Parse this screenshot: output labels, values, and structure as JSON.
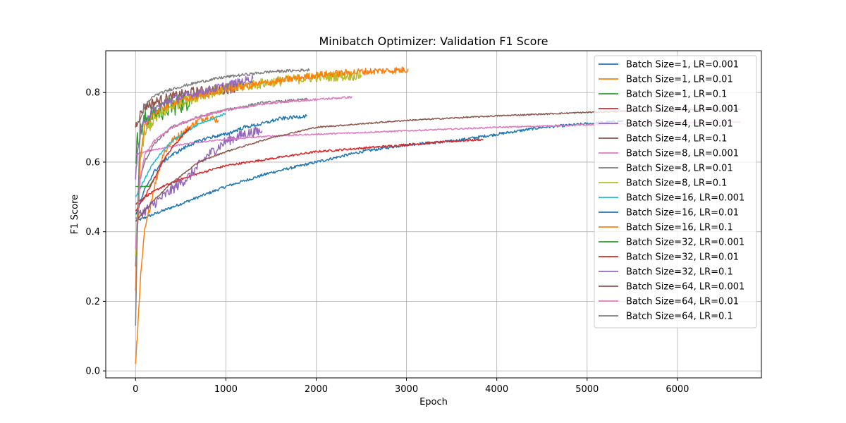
{
  "chart_data": {
    "type": "line",
    "title": "Minibatch Optimizer: Validation F1 Score",
    "xlabel": "Epoch",
    "ylabel": "F1 Score",
    "xlim": [
      -330,
      6930
    ],
    "ylim": [
      -0.02,
      0.92
    ],
    "xticks": [
      0,
      1000,
      2000,
      3000,
      4000,
      5000,
      6000
    ],
    "yticks": [
      0.0,
      0.2,
      0.4,
      0.6,
      0.8
    ],
    "grid": true,
    "legend_position": "top-right",
    "series": [
      {
        "name": "Batch Size=1, LR=0.001",
        "color": "#1f77b4",
        "noise": 0.004,
        "points": [
          [
            0,
            0.43
          ],
          [
            100,
            0.44
          ],
          [
            300,
            0.46
          ],
          [
            600,
            0.49
          ],
          [
            1000,
            0.53
          ],
          [
            1500,
            0.57
          ],
          [
            2000,
            0.6
          ],
          [
            2500,
            0.63
          ],
          [
            3000,
            0.65
          ],
          [
            3500,
            0.66
          ],
          [
            4000,
            0.68
          ],
          [
            4500,
            0.7
          ],
          [
            5000,
            0.71
          ],
          [
            5400,
            0.718
          ]
        ]
      },
      {
        "name": "Batch Size=1, LR=0.01",
        "color": "#ff7f0e",
        "noise": 0.01,
        "points": [
          [
            0,
            0.02
          ],
          [
            20,
            0.1
          ],
          [
            50,
            0.25
          ],
          [
            100,
            0.4
          ],
          [
            200,
            0.52
          ],
          [
            300,
            0.62
          ],
          [
            400,
            0.66
          ],
          [
            500,
            0.68
          ],
          [
            600,
            0.7
          ],
          [
            700,
            0.72
          ],
          [
            800,
            0.73
          ],
          [
            920,
            0.72
          ]
        ]
      },
      {
        "name": "Batch Size=1, LR=0.1",
        "color": "#2ca02c",
        "noise": 0.03,
        "points": [
          [
            0,
            0.6
          ],
          [
            20,
            0.66
          ],
          [
            50,
            0.68
          ],
          [
            100,
            0.72
          ],
          [
            200,
            0.74
          ],
          [
            300,
            0.75
          ],
          [
            400,
            0.76
          ],
          [
            500,
            0.77
          ],
          [
            600,
            0.78
          ]
        ]
      },
      {
        "name": "Batch Size=4, LR=0.001",
        "color": "#d62728",
        "noise": 0.003,
        "points": [
          [
            0,
            0.48
          ],
          [
            100,
            0.5
          ],
          [
            300,
            0.53
          ],
          [
            600,
            0.56
          ],
          [
            1000,
            0.59
          ],
          [
            1500,
            0.61
          ],
          [
            2000,
            0.63
          ],
          [
            2500,
            0.64
          ],
          [
            3000,
            0.65
          ],
          [
            3500,
            0.66
          ],
          [
            3850,
            0.665
          ]
        ]
      },
      {
        "name": "Batch Size=4, LR=0.01",
        "color": "#9467bd",
        "noise": 0.015,
        "points": [
          [
            0,
            0.44
          ],
          [
            100,
            0.46
          ],
          [
            300,
            0.5
          ],
          [
            600,
            0.56
          ],
          [
            800,
            0.62
          ],
          [
            1000,
            0.66
          ],
          [
            1200,
            0.68
          ],
          [
            1400,
            0.69
          ]
        ]
      },
      {
        "name": "Batch Size=4, LR=0.1",
        "color": "#8c564b",
        "noise": 0.015,
        "points": [
          [
            0,
            0.7
          ],
          [
            20,
            0.72
          ],
          [
            100,
            0.76
          ],
          [
            300,
            0.78
          ],
          [
            600,
            0.8
          ],
          [
            1000,
            0.81
          ],
          [
            1200,
            0.82
          ]
        ]
      },
      {
        "name": "Batch Size=8, LR=0.001",
        "color": "#e377c2",
        "noise": 0.002,
        "points": [
          [
            0,
            0.62
          ],
          [
            100,
            0.63
          ],
          [
            300,
            0.64
          ],
          [
            600,
            0.655
          ],
          [
            1000,
            0.665
          ],
          [
            1500,
            0.675
          ],
          [
            2000,
            0.68
          ],
          [
            3000,
            0.69
          ],
          [
            4000,
            0.7
          ],
          [
            5000,
            0.707
          ],
          [
            6000,
            0.713
          ],
          [
            6700,
            0.715
          ]
        ]
      },
      {
        "name": "Batch Size=8, LR=0.01",
        "color": "#7f7f7f",
        "noise": 0.004,
        "points": [
          [
            0,
            0.3
          ],
          [
            50,
            0.55
          ],
          [
            100,
            0.6
          ],
          [
            200,
            0.65
          ],
          [
            400,
            0.7
          ],
          [
            700,
            0.73
          ],
          [
            1000,
            0.75
          ],
          [
            1400,
            0.77
          ],
          [
            1900,
            0.78
          ]
        ]
      },
      {
        "name": "Batch Size=8, LR=0.1",
        "color": "#bcbd22",
        "noise": 0.015,
        "points": [
          [
            0,
            0.33
          ],
          [
            20,
            0.45
          ],
          [
            50,
            0.6
          ],
          [
            100,
            0.68
          ],
          [
            200,
            0.72
          ],
          [
            400,
            0.76
          ],
          [
            700,
            0.79
          ],
          [
            1000,
            0.81
          ],
          [
            1500,
            0.83
          ],
          [
            2000,
            0.845
          ],
          [
            2500,
            0.85
          ]
        ]
      },
      {
        "name": "Batch Size=16, LR=0.001",
        "color": "#17becf",
        "noise": 0.003,
        "points": [
          [
            0,
            0.5
          ],
          [
            100,
            0.55
          ],
          [
            200,
            0.6
          ],
          [
            400,
            0.66
          ],
          [
            700,
            0.71
          ],
          [
            1000,
            0.74
          ]
        ]
      },
      {
        "name": "Batch Size=16, LR=0.01",
        "color": "#1f77b4",
        "noise": 0.005,
        "points": [
          [
            0,
            0.45
          ],
          [
            50,
            0.48
          ],
          [
            100,
            0.52
          ],
          [
            200,
            0.57
          ],
          [
            300,
            0.6
          ],
          [
            400,
            0.62
          ],
          [
            600,
            0.65
          ],
          [
            800,
            0.67
          ],
          [
            1000,
            0.68
          ],
          [
            1200,
            0.7
          ],
          [
            1400,
            0.71
          ],
          [
            1600,
            0.725
          ],
          [
            1800,
            0.73
          ],
          [
            1900,
            0.733
          ]
        ]
      },
      {
        "name": "Batch Size=16, LR=0.1",
        "color": "#ff7f0e",
        "noise": 0.01,
        "points": [
          [
            0,
            0.23
          ],
          [
            20,
            0.4
          ],
          [
            50,
            0.6
          ],
          [
            100,
            0.7
          ],
          [
            200,
            0.74
          ],
          [
            400,
            0.77
          ],
          [
            700,
            0.79
          ],
          [
            1000,
            0.81
          ],
          [
            1500,
            0.83
          ],
          [
            2000,
            0.85
          ],
          [
            2500,
            0.86
          ],
          [
            3000,
            0.865
          ],
          [
            3020,
            0.868
          ]
        ]
      },
      {
        "name": "Batch Size=32, LR=0.001",
        "color": "#2ca02c",
        "noise": 0.0,
        "points": [
          [
            0,
            0.53
          ],
          [
            150,
            0.53
          ],
          [
            200,
            0.55
          ]
        ]
      },
      {
        "name": "Batch Size=32, LR=0.01",
        "color": "#d62728",
        "noise": 0.003,
        "points": [
          [
            0,
            0.46
          ],
          [
            100,
            0.5
          ],
          [
            200,
            0.55
          ],
          [
            300,
            0.6
          ],
          [
            400,
            0.64
          ],
          [
            500,
            0.67
          ],
          [
            600,
            0.7
          ]
        ]
      },
      {
        "name": "Batch Size=32, LR=0.1",
        "color": "#9467bd",
        "noise": 0.012,
        "points": [
          [
            0,
            0.55
          ],
          [
            20,
            0.62
          ],
          [
            50,
            0.68
          ],
          [
            100,
            0.72
          ],
          [
            200,
            0.75
          ],
          [
            400,
            0.78
          ],
          [
            700,
            0.8
          ],
          [
            1000,
            0.82
          ],
          [
            1300,
            0.84
          ]
        ]
      },
      {
        "name": "Batch Size=64, LR=0.001",
        "color": "#8c564b",
        "noise": 0.002,
        "points": [
          [
            0,
            0.43
          ],
          [
            200,
            0.49
          ],
          [
            400,
            0.54
          ],
          [
            700,
            0.6
          ],
          [
            1000,
            0.63
          ],
          [
            1500,
            0.67
          ],
          [
            2000,
            0.7
          ],
          [
            3000,
            0.72
          ],
          [
            4000,
            0.733
          ],
          [
            5000,
            0.743
          ],
          [
            6000,
            0.75
          ],
          [
            6700,
            0.752
          ]
        ]
      },
      {
        "name": "Batch Size=64, LR=0.01",
        "color": "#e377c2",
        "noise": 0.003,
        "points": [
          [
            0,
            0.35
          ],
          [
            50,
            0.55
          ],
          [
            100,
            0.62
          ],
          [
            200,
            0.66
          ],
          [
            400,
            0.7
          ],
          [
            700,
            0.73
          ],
          [
            1000,
            0.75
          ],
          [
            1500,
            0.77
          ],
          [
            2000,
            0.78
          ],
          [
            2400,
            0.787
          ]
        ]
      },
      {
        "name": "Batch Size=64, LR=0.1",
        "color": "#7f7f7f",
        "noise": 0.004,
        "points": [
          [
            0,
            0.13
          ],
          [
            20,
            0.4
          ],
          [
            50,
            0.72
          ],
          [
            100,
            0.76
          ],
          [
            200,
            0.79
          ],
          [
            400,
            0.81
          ],
          [
            700,
            0.83
          ],
          [
            1000,
            0.845
          ],
          [
            1500,
            0.86
          ],
          [
            1930,
            0.865
          ]
        ]
      }
    ]
  }
}
